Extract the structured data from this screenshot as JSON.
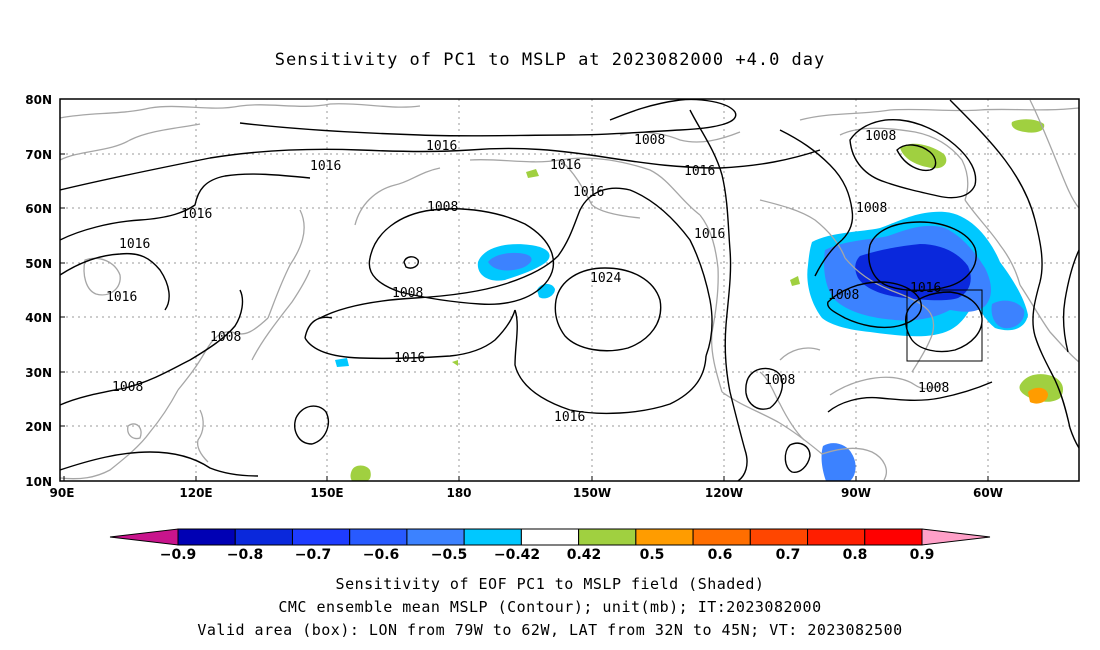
{
  "title": "Sensitivity of PC1 to MSLP at 2023082000 +4.0 day",
  "map": {
    "lon_ticks": [
      "90E",
      "120E",
      "150E",
      "180",
      "150W",
      "120W",
      "90W",
      "60W"
    ],
    "lat_ticks": [
      "10N",
      "20N",
      "30N",
      "40N",
      "50N",
      "60N",
      "70N",
      "80N"
    ],
    "contour_labels": [
      "1016",
      "1008",
      "1016",
      "1016",
      "1008",
      "1016",
      "1016",
      "1016",
      "1008",
      "1016",
      "1016",
      "1016",
      "1008",
      "1024",
      "1008",
      "1008",
      "1016",
      "1016",
      "1008",
      "1008",
      "1016",
      "1008",
      "1008"
    ],
    "colors": {
      "coastline": "#a6a6a6",
      "contour": "#000000",
      "neg": "#1e3cff",
      "neg_light": "#00c8ff",
      "pos": "#a0d040",
      "pos_strong": "#ff8c00"
    }
  },
  "colorbar": {
    "labels": [
      "−0.9",
      "−0.8",
      "−0.7",
      "−0.6",
      "−0.5",
      "−0.42",
      "0.42",
      "0.5",
      "0.6",
      "0.7",
      "0.8",
      "0.9"
    ],
    "colors": [
      "#c8148c",
      "#0000b4",
      "#0a28dc",
      "#1e3cff",
      "#285aff",
      "#3c82ff",
      "#00c8ff",
      "#ffffff",
      "#a0d040",
      "#ff9c00",
      "#ff6e00",
      "#ff4600",
      "#ff1e00",
      "#ff0000",
      "#ffa0c8"
    ]
  },
  "caption": {
    "line1": "Sensitivity of EOF PC1 to MSLP field (Shaded)",
    "line2": "CMC ensemble mean MSLP (Contour); unit(mb); IT:2023082000",
    "line3": "Valid area (box): LON from 79W to 62W, LAT from 32N to 45N; VT: 2023082500"
  }
}
